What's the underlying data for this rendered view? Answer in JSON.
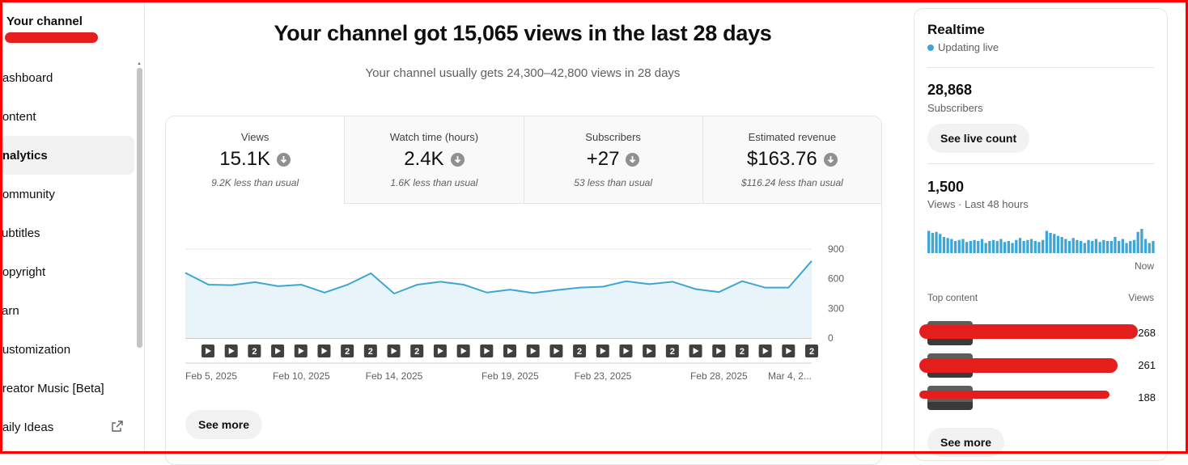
{
  "sidebar": {
    "title": "Your channel",
    "items": [
      {
        "label": "Dashboard",
        "name": "sidebar-item-dashboard",
        "active": false
      },
      {
        "label": "Content",
        "name": "sidebar-item-content",
        "active": false
      },
      {
        "label": "Analytics",
        "name": "sidebar-item-analytics",
        "active": true
      },
      {
        "label": "Community",
        "name": "sidebar-item-community",
        "active": false
      },
      {
        "label": "Subtitles",
        "name": "sidebar-item-subtitles",
        "active": false
      },
      {
        "label": "Copyright",
        "name": "sidebar-item-copyright",
        "active": false
      },
      {
        "label": "Earn",
        "name": "sidebar-item-earn",
        "active": false
      },
      {
        "label": "Customization",
        "name": "sidebar-item-customization",
        "active": false
      },
      {
        "label": "Creator Music [Beta]",
        "name": "sidebar-item-creator-music",
        "active": false
      },
      {
        "label": "Daily Ideas",
        "name": "sidebar-item-daily-ideas",
        "active": false,
        "external": true
      }
    ]
  },
  "main": {
    "headline": "Your channel got 15,065 views in the last 28 days",
    "subline": "Your channel usually gets 24,300–42,800 views in 28 days",
    "metrics": [
      {
        "label": "Views",
        "value": "15.1K",
        "note": "9.2K less than usual"
      },
      {
        "label": "Watch time (hours)",
        "value": "2.4K",
        "note": "1.6K less than usual"
      },
      {
        "label": "Subscribers",
        "value": "+27",
        "note": "53 less than usual"
      },
      {
        "label": "Estimated revenue",
        "value": "$163.76",
        "note": "$116.24 less than usual"
      }
    ],
    "see_more": "See more"
  },
  "chart_data": {
    "type": "area",
    "y_ticks": [
      "900",
      "600",
      "300",
      "0"
    ],
    "ylim": [
      0,
      900
    ],
    "values": [
      660,
      540,
      535,
      565,
      525,
      540,
      460,
      540,
      655,
      450,
      540,
      570,
      540,
      460,
      490,
      455,
      485,
      510,
      520,
      575,
      545,
      570,
      495,
      465,
      575,
      510,
      510,
      780
    ],
    "x_labels": [
      "Feb 5, 2025",
      "Feb 10, 2025",
      "Feb 14, 2025",
      "Feb 19, 2025",
      "Feb 23, 2025",
      "Feb 28, 2025",
      "Mar 4, 2..."
    ],
    "x_label_index": [
      0,
      5,
      9,
      14,
      18,
      23,
      27
    ],
    "markers": [
      "play",
      "play",
      "2",
      "play",
      "play",
      "play",
      "2",
      "2",
      "play",
      "2",
      "play",
      "play",
      "play",
      "play",
      "play",
      "play",
      "2",
      "play",
      "play",
      "play",
      "2",
      "play",
      "play",
      "2",
      "play",
      "play",
      "2"
    ],
    "colors": {
      "line": "#3ea6d4",
      "fill": "#e8f4fa"
    }
  },
  "realtime": {
    "title": "Realtime",
    "live": "Updating live",
    "subscribers": "28,868",
    "subscribers_label": "Subscribers",
    "see_live": "See live count",
    "views": "1,500",
    "views_label": "Views · Last 48 hours",
    "bars": [
      22,
      20,
      21,
      19,
      16,
      15,
      14,
      12,
      13,
      14,
      11,
      12,
      13,
      12,
      14,
      10,
      12,
      13,
      12,
      14,
      11,
      12,
      10,
      13,
      15,
      12,
      13,
      14,
      12,
      11,
      13,
      22,
      20,
      19,
      17,
      16,
      14,
      12,
      15,
      13,
      12,
      10,
      13,
      12,
      14,
      11,
      13,
      12,
      12,
      16,
      12,
      14,
      10,
      12,
      13,
      21,
      24,
      14,
      10,
      12
    ],
    "now": "Now",
    "top_content_label": "Top content",
    "views_col_label": "Views",
    "top_content": [
      {
        "views": "268"
      },
      {
        "views": "261"
      },
      {
        "views": "188"
      }
    ],
    "see_more": "See more",
    "accent": "#3ea6d4"
  }
}
